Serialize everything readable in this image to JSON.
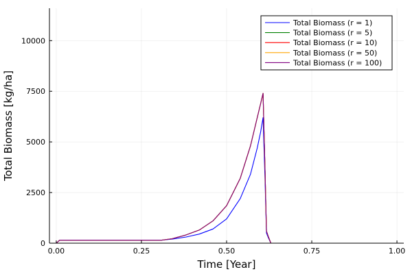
{
  "chart_data": {
    "type": "line",
    "title": "",
    "xlabel": "Time [Year]",
    "ylabel": "Total Biomass [kg/ha]",
    "xlim": [
      -0.02,
      1.02
    ],
    "ylim": [
      0,
      11600
    ],
    "xticks": [
      0.0,
      0.25,
      0.5,
      0.75,
      1.0
    ],
    "xtick_labels": [
      "0.00",
      "0.25",
      "0.50",
      "0.75",
      "1.00"
    ],
    "yticks": [
      0,
      2500,
      5000,
      7500,
      10000
    ],
    "ytick_labels": [
      "0",
      "2500",
      "5000",
      "7500",
      "10000"
    ],
    "grid": true,
    "legend_position": "top-right",
    "series": [
      {
        "name": "Total Biomass (r = 1)",
        "color": "#0000ff",
        "x": [
          0.0,
          0.01,
          0.02,
          0.05,
          0.1,
          0.2,
          0.3,
          0.31,
          0.34,
          0.38,
          0.42,
          0.46,
          0.5,
          0.54,
          0.57,
          0.59,
          0.6,
          0.607,
          0.613,
          0.617,
          0.623,
          0.63,
          0.65,
          0.8,
          1.0
        ],
        "y": [
          0,
          150,
          150,
          150,
          150,
          150,
          150,
          150,
          200,
          300,
          450,
          700,
          1200,
          2200,
          3400,
          4700,
          5500,
          6200,
          3000,
          500,
          250,
          0,
          0,
          0,
          0
        ]
      },
      {
        "name": "Total Biomass (r = 5)",
        "color": "#008000",
        "x": [
          0.0,
          0.01,
          0.02,
          0.05,
          0.1,
          0.2,
          0.3,
          0.31,
          0.34,
          0.38,
          0.42,
          0.46,
          0.5,
          0.54,
          0.57,
          0.59,
          0.6,
          0.607,
          0.613,
          0.617,
          0.623,
          0.63,
          0.65,
          0.8,
          1.0
        ],
        "y": [
          0,
          150,
          150,
          150,
          150,
          150,
          150,
          150,
          220,
          400,
          650,
          1100,
          1850,
          3200,
          4800,
          6200,
          6900,
          7400,
          3500,
          600,
          300,
          0,
          0,
          0,
          0
        ]
      },
      {
        "name": "Total Biomass (r = 10)",
        "color": "#ff0000",
        "x": [
          0.0,
          0.01,
          0.02,
          0.05,
          0.1,
          0.2,
          0.3,
          0.31,
          0.34,
          0.38,
          0.42,
          0.46,
          0.5,
          0.54,
          0.57,
          0.59,
          0.6,
          0.607,
          0.613,
          0.617,
          0.623,
          0.63,
          0.65,
          0.8,
          1.0
        ],
        "y": [
          0,
          150,
          150,
          150,
          150,
          150,
          150,
          150,
          220,
          400,
          650,
          1100,
          1850,
          3200,
          4800,
          6200,
          6900,
          7400,
          3500,
          600,
          300,
          0,
          0,
          0,
          0
        ]
      },
      {
        "name": "Total Biomass (r = 50)",
        "color": "#ffa500",
        "x": [
          0.0,
          0.01,
          0.02,
          0.05,
          0.1,
          0.2,
          0.3,
          0.31,
          0.34,
          0.38,
          0.42,
          0.46,
          0.5,
          0.54,
          0.57,
          0.59,
          0.6,
          0.607,
          0.613,
          0.617,
          0.623,
          0.63,
          0.65,
          0.8,
          1.0
        ],
        "y": [
          0,
          150,
          150,
          150,
          150,
          150,
          150,
          150,
          220,
          400,
          650,
          1100,
          1850,
          3200,
          4800,
          6200,
          6900,
          7400,
          3500,
          600,
          300,
          0,
          0,
          0,
          0
        ]
      },
      {
        "name": "Total Biomass (r = 100)",
        "color": "#800080",
        "x": [
          0.0,
          0.01,
          0.02,
          0.05,
          0.1,
          0.2,
          0.3,
          0.31,
          0.34,
          0.38,
          0.42,
          0.46,
          0.5,
          0.54,
          0.57,
          0.59,
          0.6,
          0.607,
          0.613,
          0.617,
          0.623,
          0.63,
          0.65,
          0.8,
          1.0
        ],
        "y": [
          0,
          150,
          150,
          150,
          150,
          150,
          150,
          150,
          220,
          400,
          650,
          1100,
          1850,
          3200,
          4800,
          6200,
          6900,
          7400,
          3500,
          600,
          300,
          0,
          0,
          0,
          0
        ]
      }
    ]
  }
}
